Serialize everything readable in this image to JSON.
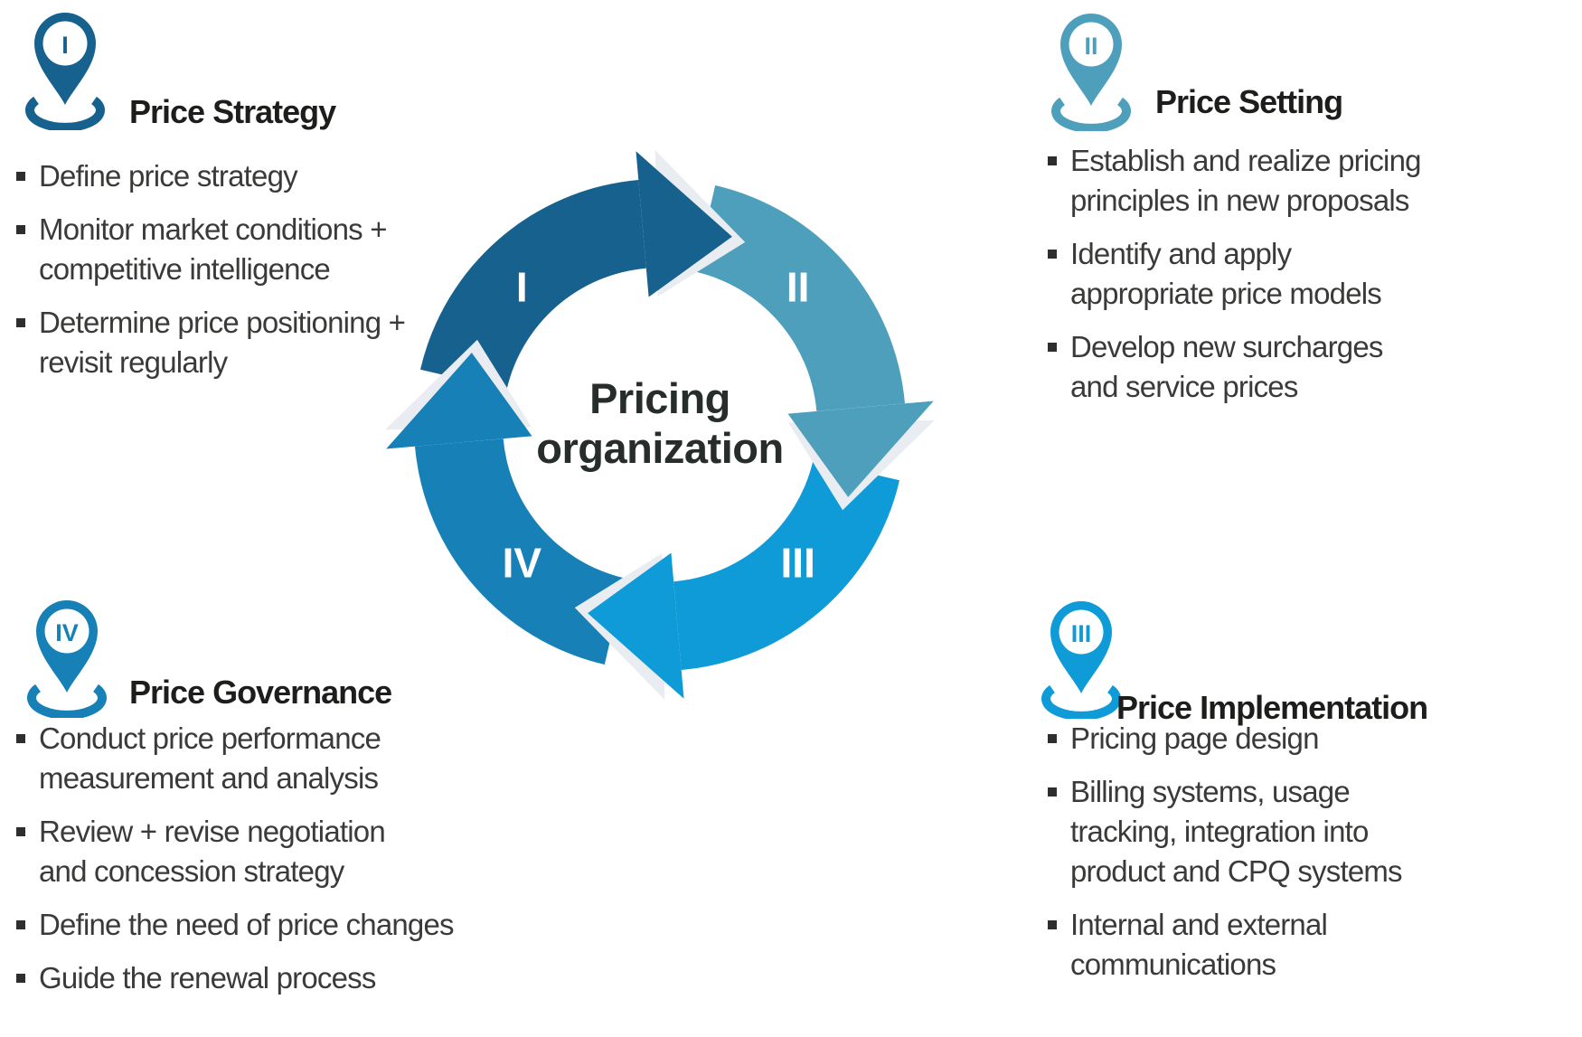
{
  "diagram": {
    "center_title_lines": [
      "Pricing",
      "organization"
    ],
    "shadow_color": "#e9edf1",
    "ring_numeral_color": "#ffffff"
  },
  "text_colors": {
    "title": "#1d1d1b",
    "body": "#3a3a39",
    "marker": "#2e2e2d",
    "center": "#272d2b"
  },
  "sections": [
    {
      "id": "price-strategy",
      "numeral": "I",
      "title": "Price Strategy",
      "color": "#17618f",
      "bullets": [
        [
          "Define price strategy"
        ],
        [
          "Monitor market conditions +",
          "competitive intelligence"
        ],
        [
          "Determine price positioning +",
          "revisit regularly"
        ]
      ]
    },
    {
      "id": "price-setting",
      "numeral": "II",
      "title": "Price Setting",
      "color": "#4e9fbc",
      "bullets": [
        [
          "Establish and realize pricing",
          "principles in new proposals"
        ],
        [
          "Identify and apply",
          "appropriate price models"
        ],
        [
          "Develop new surcharges",
          "and service prices"
        ]
      ]
    },
    {
      "id": "price-implementation",
      "numeral": "III",
      "title": "Price Implementation",
      "color": "#0f9bd8",
      "bullets": [
        [
          "Pricing page design"
        ],
        [
          "Billing systems, usage",
          "tracking, integration into",
          "product and CPQ systems"
        ],
        [
          "Internal and external",
          "communications"
        ]
      ]
    },
    {
      "id": "price-governance",
      "numeral": "IV",
      "title": "Price Governance",
      "color": "#1680b7",
      "bullets": [
        [
          "Conduct price performance",
          "measurement and analysis"
        ],
        [
          "Review + revise negotiation",
          "and concession strategy"
        ],
        [
          "Define the need of price changes"
        ],
        [
          "Guide the renewal process"
        ]
      ]
    }
  ]
}
